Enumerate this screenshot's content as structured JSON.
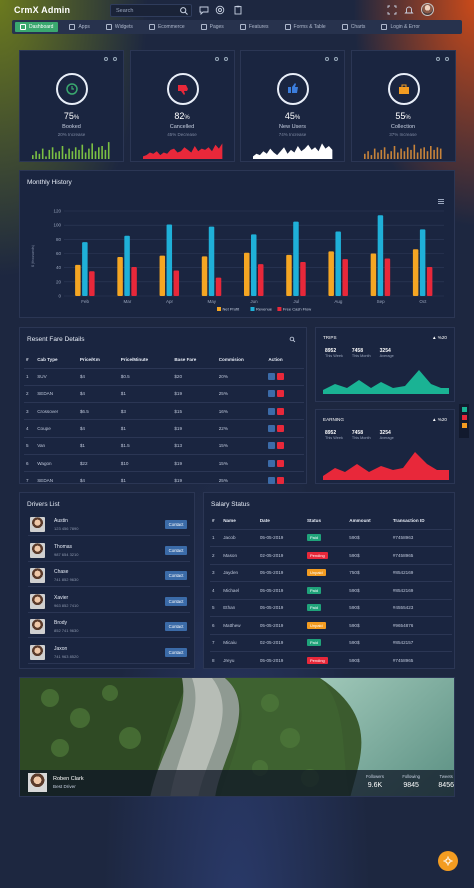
{
  "app": {
    "brand": "CrmX Admin"
  },
  "search": {
    "placeholder": "Search"
  },
  "nav": [
    {
      "label": "Dashboard",
      "active": true
    },
    {
      "label": "Apps"
    },
    {
      "label": "Widgets"
    },
    {
      "label": "Ecommerce"
    },
    {
      "label": "Pages"
    },
    {
      "label": "Features"
    },
    {
      "label": "Forms & Table"
    },
    {
      "label": "Charts"
    },
    {
      "label": "Login & Error"
    }
  ],
  "stats": [
    {
      "pct_num": "75",
      "pct_sym": "%",
      "label": "Booked",
      "sub": "20% Increase",
      "icon": "clock-icon",
      "icon_color": "#3aa86f",
      "spark_color": "#7bc043"
    },
    {
      "pct_num": "82",
      "pct_sym": "%",
      "label": "Cancelled",
      "sub": "45% Decrease",
      "icon": "thumbs-down-icon",
      "icon_color": "#e8283a",
      "spark_color": "#e8283a"
    },
    {
      "pct_num": "45",
      "pct_sym": "%",
      "label": "New Users",
      "sub": "74% Increase",
      "icon": "thumbs-up-icon",
      "icon_color": "#3b7ddd",
      "spark_color": "#ffffff"
    },
    {
      "pct_num": "55",
      "pct_sym": "%",
      "label": "Collection",
      "sub": "37% Increase",
      "icon": "briefcase-icon",
      "icon_color": "#f39c21",
      "spark_color": "#c7833a"
    }
  ],
  "monthly": {
    "title": "Monthly History"
  },
  "chart_data": {
    "type": "bar",
    "title": "Monthly History",
    "categories": [
      "Feb",
      "Mar",
      "Apr",
      "May",
      "Jun",
      "Jul",
      "Aug",
      "Sep",
      "Oct"
    ],
    "series": [
      {
        "name": "Net Profit",
        "color": "#f5a623",
        "values": [
          44,
          55,
          57,
          56,
          61,
          58,
          63,
          60,
          66
        ]
      },
      {
        "name": "Revenue",
        "color": "#1fb0d8",
        "values": [
          76,
          85,
          101,
          98,
          87,
          105,
          91,
          114,
          94
        ]
      },
      {
        "name": "Free Cash Flow",
        "color": "#e8283a",
        "values": [
          35,
          41,
          36,
          26,
          45,
          48,
          52,
          53,
          41
        ]
      }
    ],
    "ylim": [
      0,
      120
    ],
    "yticks": [
      0,
      20,
      40,
      60,
      80,
      100,
      120
    ],
    "ylabel": "$ (thousands)",
    "legend": "bottom"
  },
  "fare": {
    "title": "Resent Fare Details",
    "columns": [
      "#",
      "Cab Type",
      "Price/Km",
      "Price/Minute",
      "Base Fare",
      "Commision",
      "Action"
    ],
    "rows": [
      [
        "1",
        "SUV",
        "$4",
        "$0.5",
        "$20",
        "20%"
      ],
      [
        "2",
        "SEDAN",
        "$4",
        "$1",
        "$19",
        "25%"
      ],
      [
        "3",
        "Crossover",
        "$6.5",
        "$3",
        "$15",
        "16%"
      ],
      [
        "4",
        "Coupe",
        "$4",
        "$1",
        "$19",
        "22%"
      ],
      [
        "5",
        "Van",
        "$1",
        "$1.5",
        "$13",
        "15%"
      ],
      [
        "6",
        "Wagon",
        "$22",
        "$10",
        "$19",
        "15%"
      ],
      [
        "7",
        "SEDAN",
        "$4",
        "$1",
        "$19",
        "25%"
      ]
    ]
  },
  "trips": {
    "title": "TRIPS",
    "change": "%20",
    "stats": [
      {
        "num": "8952",
        "sub": "This Week"
      },
      {
        "num": "7458",
        "sub": "This Month"
      },
      {
        "num": "3254",
        "sub": "Average"
      }
    ]
  },
  "earning": {
    "title": "EARNING",
    "change": "%20",
    "stats": [
      {
        "num": "8952",
        "sub": "This Week"
      },
      {
        "num": "7458",
        "sub": "This Month"
      },
      {
        "num": "3254",
        "sub": "Average"
      }
    ]
  },
  "drivers": {
    "title": "Drivers List",
    "button": "Contact",
    "items": [
      {
        "name": "Austin",
        "phone": "123 456 7890"
      },
      {
        "name": "Thomas",
        "phone": "987 654 3210"
      },
      {
        "name": "Chase",
        "phone": "741 852 9630"
      },
      {
        "name": "Xavier",
        "phone": "963 852 7410"
      },
      {
        "name": "Brody",
        "phone": "852 741 9630"
      },
      {
        "name": "Jaxon",
        "phone": "741 963 8520"
      }
    ]
  },
  "salary": {
    "title": "Salary Status",
    "columns": [
      "#",
      "Name",
      "Date",
      "Status",
      "Ammount",
      "Transaction ID"
    ],
    "rows": [
      [
        "1",
        "Jacob",
        "05-05-2019",
        "Paid",
        "590$",
        "#7458963"
      ],
      [
        "2",
        "Mason",
        "02-05-2019",
        "Pending",
        "590$",
        "#7458965"
      ],
      [
        "3",
        "Jayden",
        "05-05-2019",
        "Unpaid",
        "750$",
        "#8542169"
      ],
      [
        "4",
        "Michael",
        "05-05-2019",
        "Paid",
        "590$",
        "#8542169"
      ],
      [
        "5",
        "Ethan",
        "05-05-2019",
        "Paid",
        "590$",
        "#4555423"
      ],
      [
        "6",
        "Matthew",
        "05-05-2019",
        "Unpaid",
        "590$",
        "#9654876"
      ],
      [
        "7",
        "Micaiu",
        "02-05-2019",
        "Paid",
        "590$",
        "#8542157"
      ],
      [
        "8",
        "Jreyu",
        "05-05-2019",
        "Pending",
        "590$",
        "#7458965"
      ]
    ],
    "status_colors": {
      "Paid": "#1fa37a",
      "Pending": "#e8283a",
      "Unpaid": "#f39c21"
    }
  },
  "profile": {
    "name": "Roben Clark",
    "role": "Best Driver",
    "stats": [
      {
        "label": "Followers",
        "value": "9.6K"
      },
      {
        "label": "Following",
        "value": "9845"
      },
      {
        "label": "Tweets",
        "value": "8456"
      }
    ]
  }
}
